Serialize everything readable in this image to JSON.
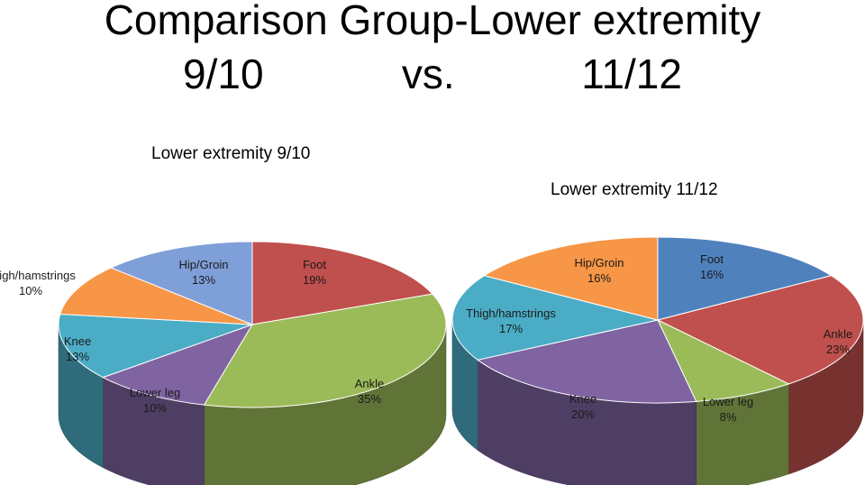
{
  "title": {
    "line1": "Comparison Group-Lower extremity",
    "line2": "9/10            vs.           11/12"
  },
  "chart_data": [
    {
      "type": "pie",
      "title": "Lower extremity 9/10",
      "slices": [
        {
          "label": "Foot",
          "value": 19,
          "text": "19%",
          "color": "#c0504d"
        },
        {
          "label": "Ankle",
          "value": 35,
          "text": "35%",
          "color": "#9bbb59"
        },
        {
          "label": "Lower leg",
          "value": 10,
          "text": "10%",
          "color": "#8064a2"
        },
        {
          "label": "Knee",
          "value": 13,
          "text": "13%",
          "color": "#4bacc6"
        },
        {
          "label": "Thigh/hamstrings",
          "value": 10,
          "text": "10%",
          "color": "#f79646"
        },
        {
          "label": "Hip/Groin",
          "value": 13,
          "text": "13%",
          "color": "#7f9fd8"
        }
      ]
    },
    {
      "type": "pie",
      "title": "Lower extremity  11/12",
      "slices": [
        {
          "label": "Foot",
          "value": 16,
          "text": "16%",
          "color": "#4f81bd"
        },
        {
          "label": "Ankle",
          "value": 23,
          "text": "23%",
          "color": "#c0504d"
        },
        {
          "label": "Lower leg",
          "value": 8,
          "text": "8%",
          "color": "#9bbb59"
        },
        {
          "label": "Knee",
          "value": 20,
          "text": "20%",
          "color": "#8064a2"
        },
        {
          "label": "Thigh/hamstrings",
          "value": 17,
          "text": "17%",
          "color": "#4bacc6"
        },
        {
          "label": "Hip/Groin",
          "value": 16,
          "text": "16%",
          "color": "#f79646"
        }
      ]
    }
  ]
}
